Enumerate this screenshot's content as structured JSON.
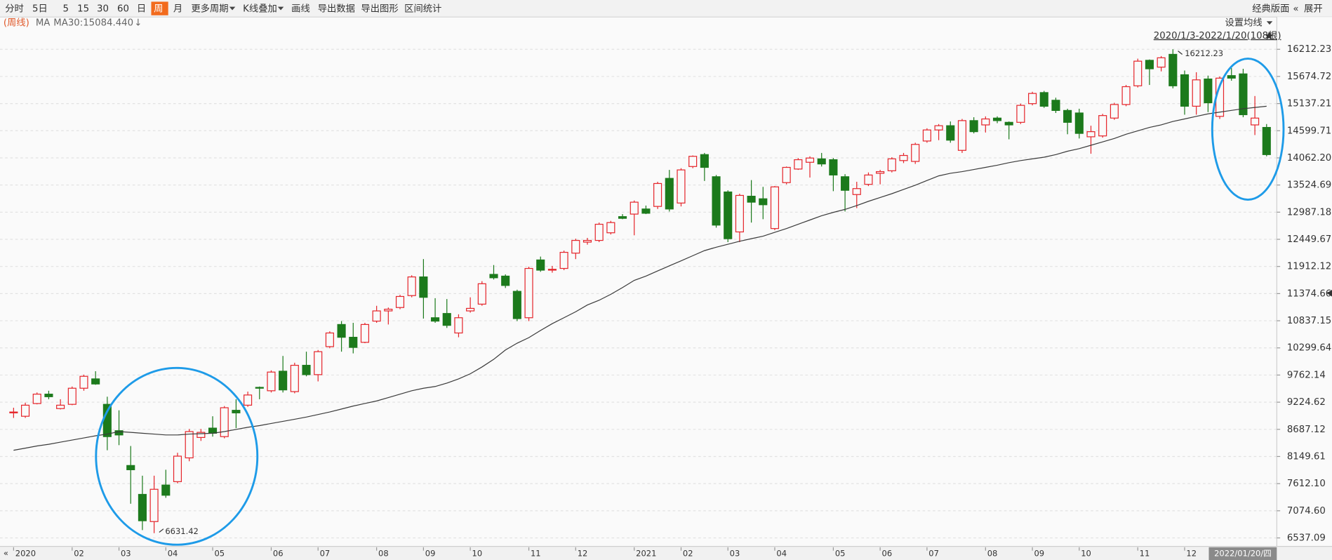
{
  "toolbar": {
    "items": [
      "分时",
      "5日",
      "5",
      "15",
      "30",
      "60",
      "日",
      "周",
      "月",
      "更多周期",
      "K线叠加",
      "画线",
      "导出数据",
      "导出图形",
      "区间统计"
    ],
    "active_index": 7,
    "right_items": [
      "经典版面",
      "«",
      "展开"
    ]
  },
  "info_bar": {
    "period_label": "(周线)",
    "indicator": "MA",
    "ma_readout": "MA30:15084.440",
    "ma_arrow": "↓",
    "ma_settings": "设置均线",
    "range_label": "2020/1/3-2022/1/20(108根)"
  },
  "footer": {
    "scroll_left": "«",
    "cursor_label": "2022/01/20/四"
  },
  "chart_data": {
    "type": "candlestick",
    "up_color": "#e5252b",
    "down_color": "#1c7a1c",
    "ma_color": "#3a3a3a",
    "grid": true,
    "ylim": [
      6369,
      16818
    ],
    "yticks": [
      16212.23,
      15674.72,
      15137.21,
      14599.71,
      {
        "value": 14062.2,
        "label": "14062.20"
      },
      13524.69,
      12987.18,
      12449.67,
      11912.12,
      11374.66,
      10837.15,
      10299.64,
      9762.14,
      9224.62,
      8687.12,
      8149.61,
      {
        "value": 7612.1,
        "label": "7612.10"
      },
      {
        "value": 7074.6,
        "label": "7074.60"
      },
      6537.09
    ],
    "categories": [
      "2020",
      null,
      null,
      null,
      null,
      "02",
      null,
      null,
      null,
      "03",
      null,
      null,
      null,
      "04",
      null,
      null,
      null,
      "05",
      null,
      null,
      null,
      null,
      "06",
      null,
      null,
      null,
      "07",
      null,
      null,
      null,
      null,
      "08",
      null,
      null,
      null,
      "09",
      null,
      null,
      null,
      "10",
      null,
      null,
      null,
      null,
      "11",
      null,
      null,
      null,
      "12",
      null,
      null,
      null,
      null,
      "2021",
      null,
      null,
      null,
      "02",
      null,
      null,
      null,
      "03",
      null,
      null,
      null,
      "04",
      null,
      null,
      null,
      null,
      "05",
      null,
      null,
      null,
      "06",
      null,
      null,
      null,
      "07",
      null,
      null,
      null,
      null,
      "08",
      null,
      null,
      null,
      "09",
      null,
      null,
      null,
      "10",
      null,
      null,
      null,
      null,
      "11",
      null,
      null,
      null,
      "12",
      null,
      null,
      null,
      null,
      null,
      null,
      null
    ],
    "open": [
      9013,
      8946,
      9198,
      9384,
      9098,
      9182,
      9501,
      9686,
      9182,
      8660,
      7971,
      7399,
      6861,
      7584,
      7651,
      8122,
      8526,
      8711,
      8543,
      9064,
      9165,
      9518,
      9451,
      9838,
      9434,
      9955,
      9770,
      10325,
      10763,
      10510,
      10410,
      10830,
      11032,
      11099,
      11335,
      11705,
      10897,
      10981,
      10595,
      11032,
      11166,
      11755,
      11721,
      11419,
      10897,
      12041,
      11839,
      11873,
      12176,
      12394,
      12428,
      12579,
      12899,
      12949,
      13050,
      13101,
      13656,
      13168,
      13891,
      14127,
      13689,
      13387,
      12596,
      13303,
      13252,
      12663,
      13572,
      13841,
      13975,
      14043,
      14026,
      13689,
      13336,
      13538,
      13757,
      13807,
      14009,
      13992,
      14396,
      14615,
      14699,
      14211,
      14800,
      14715,
      14850,
      14766,
      14766,
      15136,
      15355,
      15203,
      15001,
      14951,
      14480,
      14497,
      14850,
      15119,
      15489,
      15994,
      15859,
      16112,
      15708,
      15085,
      15624,
      14884,
      15691,
      15725,
      14715,
      14665
    ],
    "high": [
      9115,
      9215,
      9417,
      9451,
      9283,
      9535,
      9770,
      9838,
      9333,
      9064,
      8357,
      7769,
      7769,
      7887,
      8223,
      8694,
      8694,
      8946,
      9148,
      9283,
      9434,
      9535,
      9854,
      10140,
      10006,
      10225,
      10258,
      10628,
      10830,
      10796,
      10796,
      11133,
      11099,
      11351,
      11738,
      12058,
      11284,
      11267,
      10965,
      11301,
      11621,
      11940,
      11755,
      11452,
      11907,
      12108,
      11923,
      12226,
      12462,
      12478,
      12781,
      12815,
      12949,
      13218,
      13118,
      13589,
      13824,
      13858,
      14110,
      14160,
      13723,
      13420,
      13353,
      13622,
      13488,
      13504,
      13891,
      14059,
      14093,
      14160,
      14059,
      13740,
      13589,
      13774,
      13824,
      14076,
      14160,
      14362,
      14648,
      14732,
      14783,
      14833,
      14867,
      14884,
      14884,
      14783,
      15136,
      15371,
      15388,
      15254,
      15035,
      15035,
      14699,
      14934,
      15153,
      15506,
      16027,
      16011,
      16078,
      16212.23,
      15792,
      15758,
      15691,
      15674,
      15842,
      15826,
      15287,
      14732
    ],
    "low": [
      8913,
      8913,
      9182,
      9283,
      9081,
      9165,
      9451,
      9569,
      8273,
      8374,
      7214,
      6692,
      6631.42,
      7331,
      7617,
      8055,
      8458,
      8543,
      8509,
      8711,
      9131,
      9283,
      9417,
      9417,
      9400,
      9737,
      9636,
      10292,
      10225,
      10191,
      10393,
      10796,
      10763,
      11066,
      11301,
      10880,
      10796,
      10695,
      10510,
      10998,
      11133,
      11654,
      11486,
      10830,
      10830,
      11806,
      11789,
      11839,
      12058,
      12344,
      12394,
      12546,
      12848,
      12529,
      12949,
      13050,
      13000,
      13101,
      13858,
      13605,
      12680,
      12394,
      12394,
      12781,
      12848,
      12630,
      13538,
      13824,
      13673,
      13891,
      13403,
      13000,
      13067,
      13504,
      13538,
      13774,
      13959,
      13942,
      14362,
      14413,
      14362,
      14160,
      14547,
      14564,
      14749,
      14430,
      14732,
      15102,
      15052,
      14951,
      14530,
      14446,
      14144,
      14463,
      14816,
      15085,
      15456,
      15506,
      15775,
      15439,
      14917,
      14917,
      14968,
      14833,
      15590,
      14867,
      14514,
      14093
    ],
    "close": [
      9030,
      9165,
      9384,
      9333,
      9165,
      9501,
      9737,
      9585,
      8543,
      8576,
      7887,
      6877,
      7500,
      7382,
      8156,
      8643,
      8627,
      8610,
      9115,
      9013,
      9367,
      9501,
      9821,
      9468,
      9955,
      9770,
      10225,
      10595,
      10510,
      10309,
      10763,
      11032,
      11066,
      11318,
      11705,
      11301,
      10830,
      10746,
      10897,
      11082,
      11570,
      11688,
      11536,
      10880,
      11873,
      11839,
      11856,
      12192,
      12428,
      12428,
      12748,
      12781,
      12865,
      13185,
      12966,
      13555,
      13050,
      13824,
      14093,
      13874,
      12731,
      12462,
      13319,
      13185,
      13134,
      13488,
      13874,
      14026,
      14059,
      13942,
      13723,
      13420,
      13454,
      13723,
      13790,
      14043,
      14110,
      14329,
      14615,
      14699,
      14413,
      14800,
      14581,
      14833,
      14800,
      14715,
      15102,
      15338,
      15085,
      15001,
      14766,
      14547,
      14581,
      14900,
      15119,
      15472,
      15977,
      15826,
      16044,
      15489,
      15085,
      15607,
      15153,
      15641,
      15641,
      14917,
      14850,
      14127
    ],
    "ma": [
      8273,
      8314,
      8358,
      8391,
      8433,
      8475,
      8517,
      8559,
      8593,
      8643,
      8627,
      8610,
      8593,
      8576,
      8576,
      8593,
      8601,
      8610,
      8643,
      8685,
      8728,
      8761,
      8803,
      8845,
      8887,
      8930,
      8980,
      9031,
      9089,
      9148,
      9199,
      9249,
      9316,
      9384,
      9451,
      9501,
      9535,
      9602,
      9686,
      9787,
      9922,
      10073,
      10258,
      10393,
      10503,
      10645,
      10780,
      10897,
      11015,
      11150,
      11243,
      11361,
      11495,
      11637,
      11722,
      11823,
      11924,
      12024,
      12125,
      12226,
      12293,
      12352,
      12411,
      12462,
      12512,
      12588,
      12663,
      12748,
      12832,
      12916,
      12983,
      13042,
      13118,
      13202,
      13277,
      13353,
      13437,
      13521,
      13614,
      13706,
      13757,
      13790,
      13832,
      13874,
      13917,
      13967,
      14009,
      14043,
      14076,
      14127,
      14194,
      14245,
      14312,
      14379,
      14446,
      14530,
      14598,
      14665,
      14716,
      14783,
      14833,
      14884,
      14934,
      14968,
      15002,
      15035,
      15060,
      15084.44
    ]
  }
}
